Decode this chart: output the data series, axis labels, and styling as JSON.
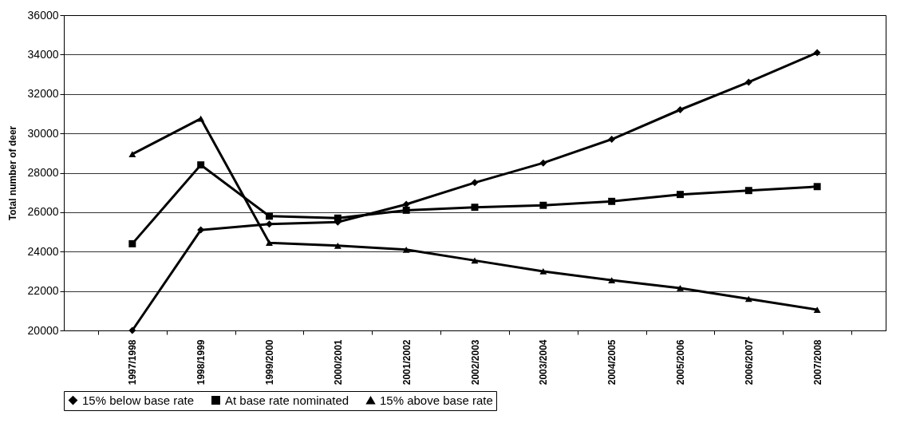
{
  "chart_data": {
    "type": "line",
    "ylabel": "Total number of deer",
    "categories": [
      "1997/1998",
      "1998/1999",
      "1999/2000",
      "2000/2001",
      "2001/2002",
      "2002/2003",
      "2003/2004",
      "2004/2005",
      "2005/2006",
      "2006/2007",
      "2007/2008"
    ],
    "series": [
      {
        "name": "15% below base rate",
        "color": "#000000",
        "marker": "diamond",
        "values": [
          20000,
          25100,
          25400,
          25500,
          26400,
          27500,
          28500,
          29700,
          31200,
          32600,
          34100
        ]
      },
      {
        "name": "At base rate nominated",
        "color": "#000000",
        "marker": "square",
        "values": [
          24400,
          28400,
          25800,
          25700,
          26100,
          26250,
          26350,
          26550,
          26900,
          27100,
          27300
        ]
      },
      {
        "name": "15% above base rate",
        "color": "#000000",
        "marker": "triangle",
        "values": [
          28950,
          30750,
          24450,
          24300,
          24100,
          23550,
          23000,
          22550,
          22150,
          21600,
          21050
        ]
      }
    ],
    "ylim": [
      20000,
      36000
    ],
    "yticks": [
      20000,
      22000,
      24000,
      26000,
      28000,
      30000,
      32000,
      34000,
      36000
    ],
    "grid": "y",
    "legend": "bottom",
    "line_style": "solid"
  }
}
